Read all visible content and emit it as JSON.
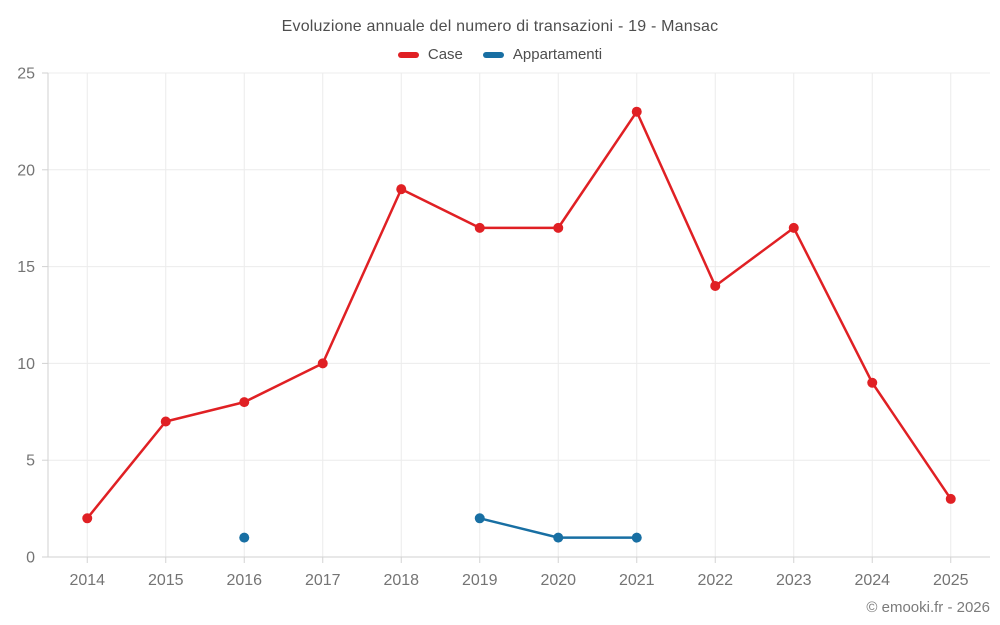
{
  "page": {
    "background": "#ffffff",
    "copyright": "© emooki.fr - 2026"
  },
  "chart_data": {
    "type": "line",
    "title": "Evoluzione annuale del numero di transazioni - 19 - Mansac",
    "categories": [
      "2014",
      "2015",
      "2016",
      "2017",
      "2018",
      "2019",
      "2020",
      "2021",
      "2022",
      "2023",
      "2024",
      "2025"
    ],
    "series": [
      {
        "name": "Case",
        "color": "#e02024",
        "values": [
          2,
          7,
          8,
          10,
          19,
          17,
          17,
          23,
          14,
          17,
          9,
          3
        ]
      },
      {
        "name": "Appartamenti",
        "color": "#186fa3",
        "values": [
          null,
          null,
          1,
          null,
          null,
          2,
          1,
          1,
          null,
          null,
          null,
          null
        ]
      }
    ],
    "xlabel": "",
    "ylabel": "",
    "ylim": [
      0,
      25
    ],
    "yticks": [
      0,
      5,
      10,
      15,
      20,
      25
    ],
    "grid": true,
    "legend_position": "top",
    "styles": {
      "grid_color": "#ececec",
      "axis_color": "#d2d2d2",
      "tick_label_color": "#747474",
      "line_width": 2.5,
      "point_radius": 5
    }
  }
}
